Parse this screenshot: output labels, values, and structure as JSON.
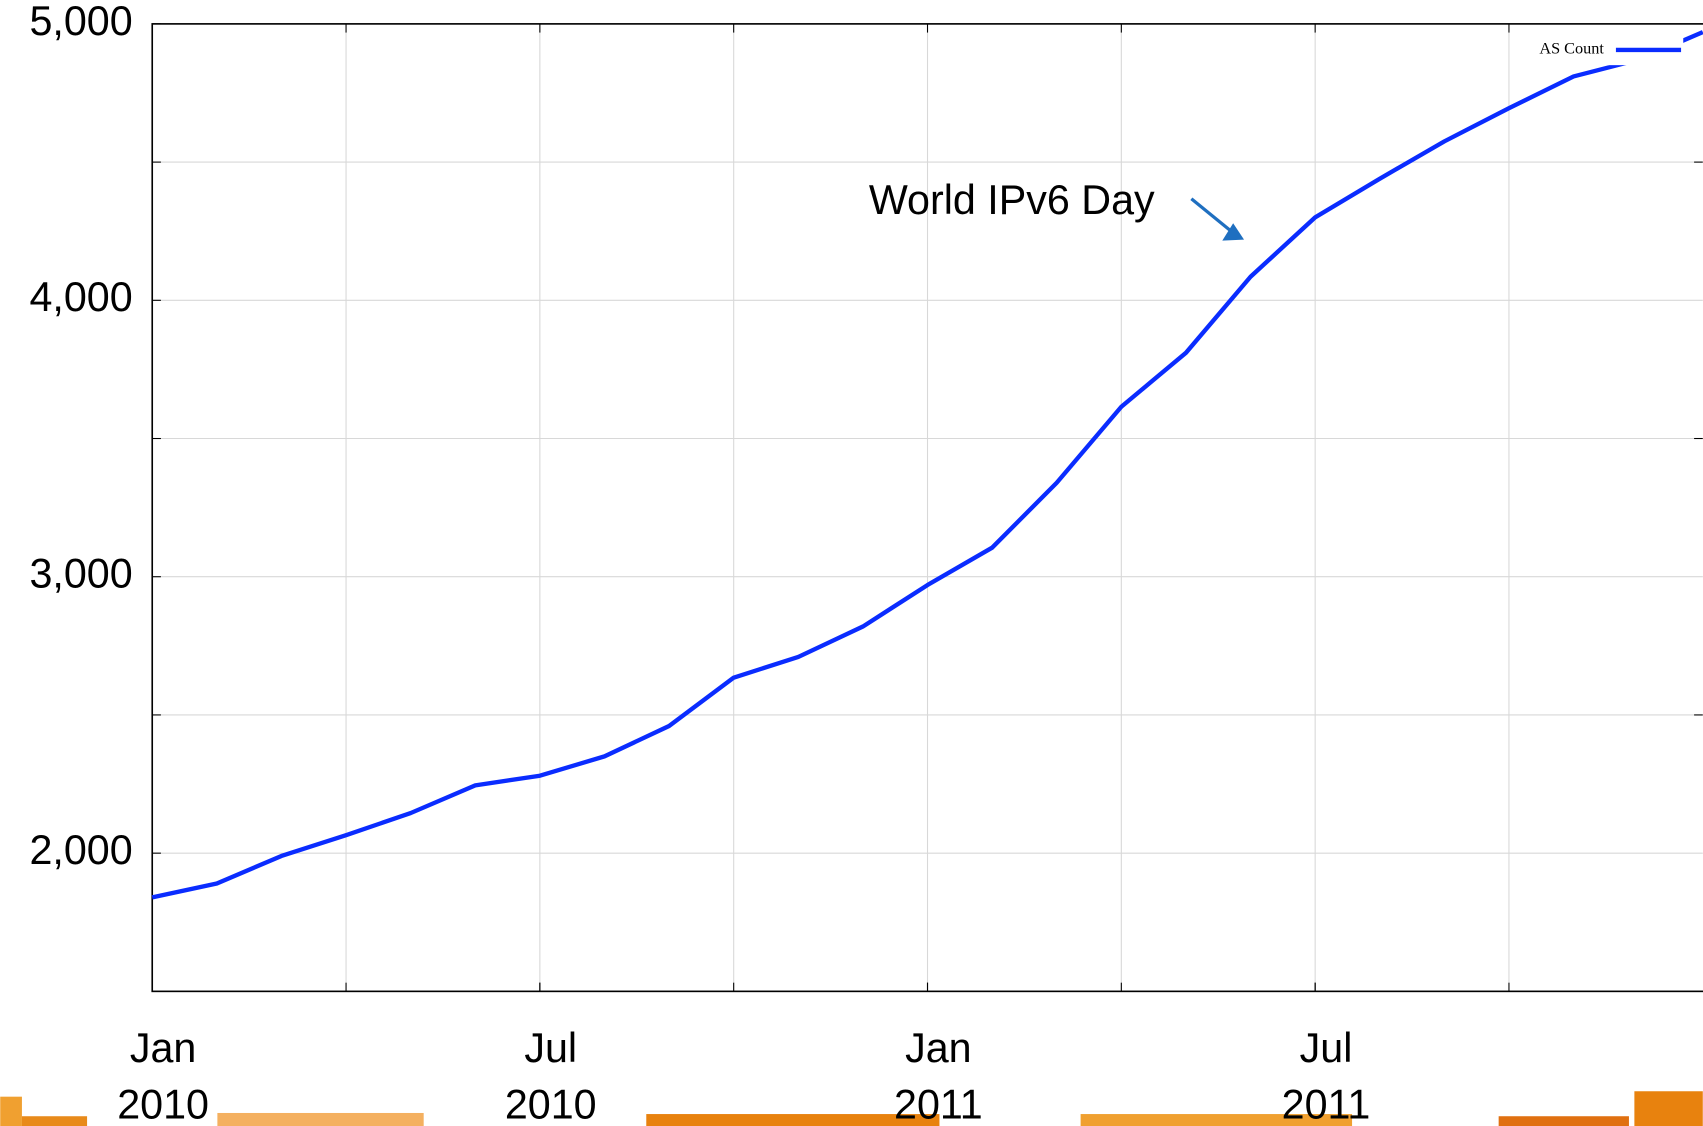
{
  "chart_data": {
    "type": "line",
    "x": [
      "2010-01",
      "2010-02",
      "2010-03",
      "2010-04",
      "2010-05",
      "2010-06",
      "2010-07",
      "2010-08",
      "2010-09",
      "2010-10",
      "2010-11",
      "2010-12",
      "2011-01",
      "2011-02",
      "2011-03",
      "2011-04",
      "2011-05",
      "2011-06",
      "2011-07",
      "2011-08",
      "2011-09",
      "2011-10",
      "2011-11",
      "2011-12",
      "2012-01"
    ],
    "series": [
      {
        "name": "AS Count",
        "color": "#0a2cff",
        "values": [
          1840,
          1890,
          1990,
          2065,
          2145,
          2245,
          2280,
          2350,
          2460,
          2635,
          2710,
          2820,
          2970,
          3105,
          3340,
          3615,
          3810,
          4085,
          4300,
          4440,
          4575,
          4695,
          4810,
          4870,
          4970
        ]
      }
    ],
    "xlim": [
      "2010-01",
      "2012-01"
    ],
    "xticks": [
      {
        "value": "2010-01",
        "label": [
          "Jan",
          "2010"
        ]
      },
      {
        "value": "2010-07",
        "label": [
          "Jul",
          "2010"
        ]
      },
      {
        "value": "2011-01",
        "label": [
          "Jan",
          "2011"
        ]
      },
      {
        "value": "2011-07",
        "label": [
          "Jul",
          "2011"
        ]
      }
    ],
    "xgrid": [
      "2010-04",
      "2010-07",
      "2010-10",
      "2011-01",
      "2011-04",
      "2011-07",
      "2011-10"
    ],
    "ylim": [
      1500,
      5000
    ],
    "yticks": [
      {
        "value": 2000,
        "label": "2,000"
      },
      {
        "value": 3000,
        "label": "3,000"
      },
      {
        "value": 4000,
        "label": "4,000"
      },
      {
        "value": 5000,
        "label": "5,000"
      }
    ],
    "yminor": [
      2500,
      3500,
      4500
    ],
    "grid": true,
    "legend": "upper right",
    "annotation": {
      "text": "World IPv6 Day",
      "x": "2011-06",
      "y": 4200
    }
  }
}
